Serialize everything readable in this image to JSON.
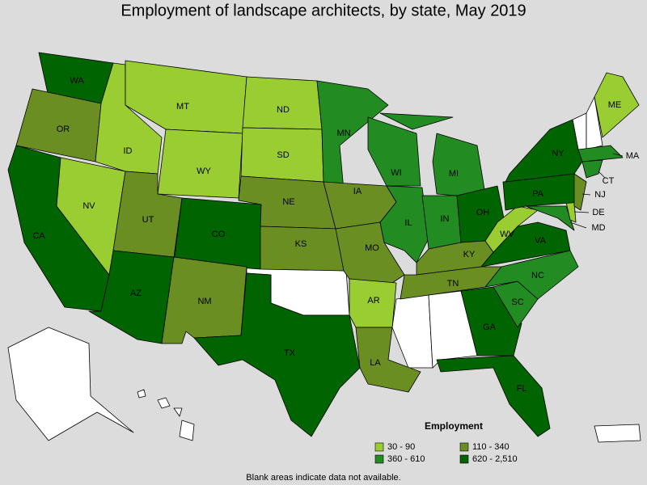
{
  "title": "Employment of landscape architects, by state, May 2019",
  "states": [
    {
      "label": "WA",
      "color": "#006400"
    },
    {
      "label": "OR",
      "color": "#6b8e23"
    },
    {
      "label": "CA",
      "color": "#006400"
    },
    {
      "label": "NV",
      "color": "#9acd32"
    },
    {
      "label": "ID",
      "color": "#9acd32"
    },
    {
      "label": "MT",
      "color": "#9acd32"
    },
    {
      "label": "WY",
      "color": "#9acd32"
    },
    {
      "label": "UT",
      "color": "#6b8e23"
    },
    {
      "label": "CO",
      "color": "#006400"
    },
    {
      "label": "AZ",
      "color": "#006400"
    },
    {
      "label": "NM",
      "color": "#6b8e23"
    },
    {
      "label": "ND",
      "color": "#9acd32"
    },
    {
      "label": "SD",
      "color": "#9acd32"
    },
    {
      "label": "NE",
      "color": "#6b8e23"
    },
    {
      "label": "KS",
      "color": "#6b8e23"
    },
    {
      "label": "TX",
      "color": "#006400"
    },
    {
      "label": "MN",
      "color": "#228b22"
    },
    {
      "label": "IA",
      "color": "#6b8e23"
    },
    {
      "label": "MO",
      "color": "#6b8e23"
    },
    {
      "label": "AR",
      "color": "#9acd32"
    },
    {
      "label": "LA",
      "color": "#6b8e23"
    },
    {
      "label": "WI",
      "color": "#228b22"
    },
    {
      "label": "IL",
      "color": "#228b22"
    },
    {
      "label": "MI",
      "color": "#228b22"
    },
    {
      "label": "IN",
      "color": "#228b22"
    },
    {
      "label": "OH",
      "color": "#006400"
    },
    {
      "label": "KY",
      "color": "#6b8e23"
    },
    {
      "label": "TN",
      "color": "#6b8e23"
    },
    {
      "label": "GA",
      "color": "#006400"
    },
    {
      "label": "FL",
      "color": "#006400"
    },
    {
      "label": "SC",
      "color": "#228b22"
    },
    {
      "label": "NC",
      "color": "#228b22"
    },
    {
      "label": "VA",
      "color": "#006400"
    },
    {
      "label": "WV",
      "color": "#9acd32"
    },
    {
      "label": "MD",
      "color": "#228b22"
    },
    {
      "label": "DE",
      "color": "#9acd32"
    },
    {
      "label": "PA",
      "color": "#006400"
    },
    {
      "label": "NJ",
      "color": "#6b8e23"
    },
    {
      "label": "NY",
      "color": "#006400"
    },
    {
      "label": "ME",
      "color": "#9acd32"
    },
    {
      "label": "MA",
      "color": "#228b22"
    },
    {
      "label": "CT",
      "color": "#228b22"
    }
  ],
  "legend": {
    "title": "Employment",
    "items": [
      {
        "name": "30 - 90",
        "color": "#9acd32"
      },
      {
        "name": "110 - 340",
        "color": "#6b8e23"
      },
      {
        "name": "360 - 610",
        "color": "#228b22"
      },
      {
        "name": "620 - 2,510",
        "color": "#006400"
      }
    ]
  },
  "footnote": "Blank areas indicate data not available."
}
